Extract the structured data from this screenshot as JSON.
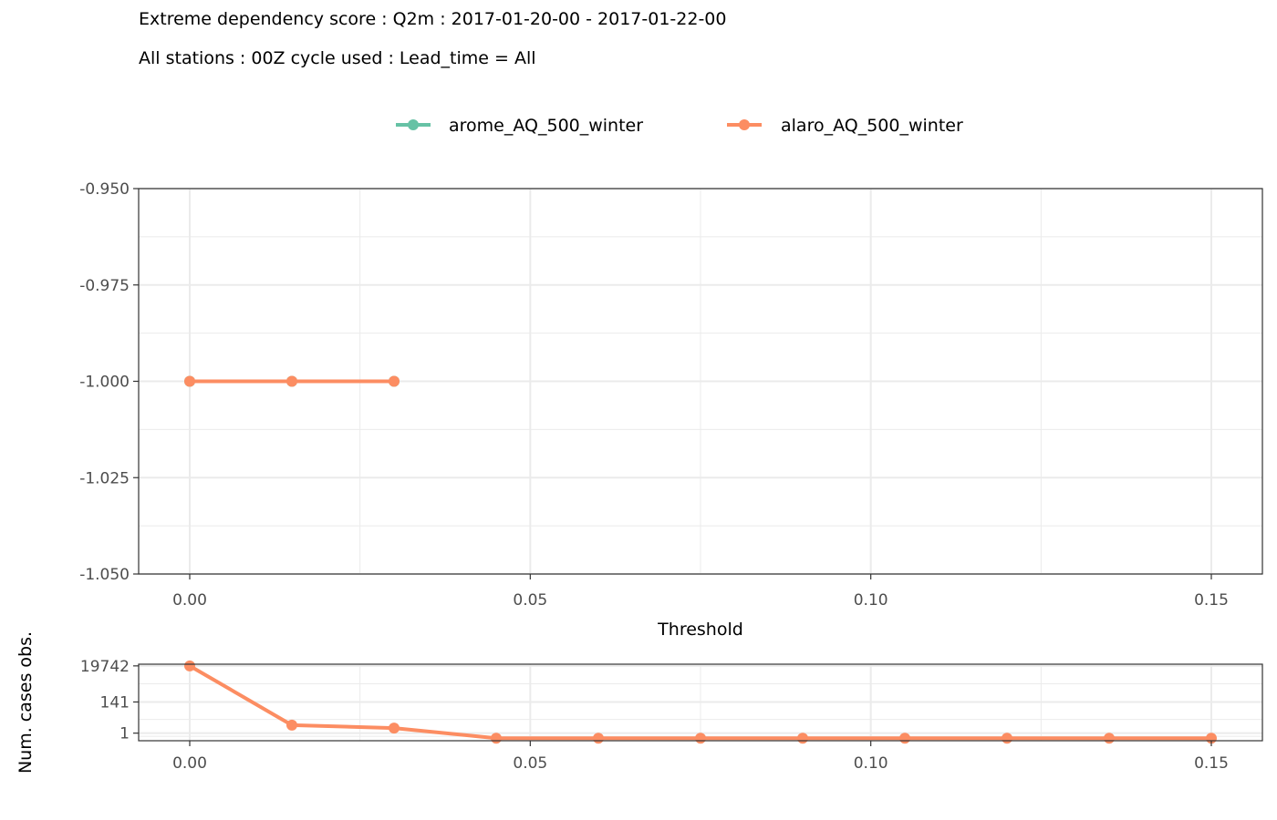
{
  "title": {
    "line1": "Extreme dependency score : Q2m : 2017-01-20-00 - 2017-01-22-00",
    "line2": "All stations : 00Z cycle used : Lead_time = All"
  },
  "legend": [
    {
      "name": "arome_AQ_500_winter",
      "color": "#66c2a5"
    },
    {
      "name": "alaro_AQ_500_winter",
      "color": "#fc8d62"
    }
  ],
  "chart_data": [
    {
      "type": "line",
      "title": "Extreme dependency score",
      "xlabel": "Threshold",
      "ylabel": "",
      "xlim": [
        -0.0075,
        0.1575
      ],
      "ylim": [
        -1.05,
        -0.95
      ],
      "xticks": [
        0.0,
        0.05,
        0.1,
        0.15
      ],
      "xtick_labels": [
        "0.00",
        "0.05",
        "0.10",
        "0.15"
      ],
      "yticks": [
        -0.95,
        -0.975,
        -1.0,
        -1.025,
        -1.05
      ],
      "ytick_labels": [
        "-0.950",
        "-0.975",
        "-1.000",
        "-1.025",
        "-1.050"
      ],
      "grid": true,
      "series": [
        {
          "name": "arome_AQ_500_winter",
          "color": "#66c2a5",
          "x": [
            0.0,
            0.015,
            0.03
          ],
          "y": [
            -1.0,
            -1.0,
            -1.0
          ]
        },
        {
          "name": "alaro_AQ_500_winter",
          "color": "#fc8d62",
          "x": [
            0.0,
            0.015,
            0.03
          ],
          "y": [
            -1.0,
            -1.0,
            -1.0
          ]
        }
      ]
    },
    {
      "type": "line",
      "title": "",
      "xlabel": "",
      "ylabel": "Num. cases obs.",
      "yscale": "pseudo-log",
      "xlim": [
        -0.0075,
        0.1575
      ],
      "xticks": [
        0.0,
        0.05,
        0.1,
        0.15
      ],
      "xtick_labels": [
        "0.00",
        "0.05",
        "0.10",
        "0.15"
      ],
      "yticks": [
        1,
        141,
        19742
      ],
      "ytick_labels": [
        "1",
        "141",
        "19742"
      ],
      "grid": true,
      "series": [
        {
          "name": "alaro_AQ_500_winter",
          "color": "#fc8d62",
          "x": [
            0.0,
            0.015,
            0.03,
            0.045,
            0.06,
            0.075,
            0.09,
            0.105,
            0.12,
            0.135,
            0.15
          ],
          "y": [
            19742,
            5,
            3,
            0,
            0,
            0,
            0,
            0,
            0,
            0,
            0
          ]
        }
      ]
    }
  ]
}
